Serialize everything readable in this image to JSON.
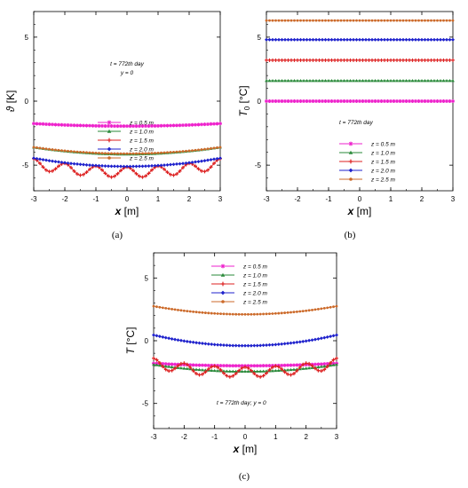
{
  "panels": [
    {
      "caption": "(a)",
      "ylabel_main": "ϑ",
      "ylabel_unit": " [K]",
      "xlabel_main": "x",
      "xlabel_unit": " [m]",
      "annotation": [
        "t = 772th day",
        "y = 0"
      ],
      "xlim": [
        -3,
        3
      ],
      "ylim": [
        -7,
        7
      ],
      "xticks": [
        -3,
        -2,
        -1,
        0,
        1,
        2,
        3
      ],
      "yticks": [
        -5,
        0,
        5
      ],
      "legend_position": "top-center",
      "series": [
        {
          "label": "z = 0.5 m",
          "color": "#ee22cc",
          "marker": "star",
          "kind": "bowl",
          "center": -1.95,
          "edge": -1.75
        },
        {
          "label": "z = 1.0 m",
          "color": "#2a8a3a",
          "marker": "triangle",
          "kind": "bowl",
          "center": -4.15,
          "edge": -3.6
        },
        {
          "label": "z = 1.5 m",
          "color": "#dd2222",
          "marker": "plus",
          "kind": "wave",
          "center": -5.55,
          "edge": -4.9,
          "amp": 0.4
        },
        {
          "label": "z = 2.0 m",
          "color": "#1f22cc",
          "marker": "diamond",
          "kind": "bowl",
          "center": -5.1,
          "edge": -4.45
        },
        {
          "label": "z = 2.5 m",
          "color": "#cc6a2a",
          "marker": "circle",
          "kind": "bowl",
          "center": -4.1,
          "edge": -3.6
        }
      ]
    },
    {
      "caption": "(b)",
      "ylabel_main": "T",
      "ylabel_sub": "0",
      "ylabel_unit": " [°C]",
      "xlabel_main": "x",
      "xlabel_unit": " [m]",
      "annotation": [
        "t = 772th day"
      ],
      "xlim": [
        -3,
        3
      ],
      "ylim": [
        -7,
        7
      ],
      "xticks": [
        -3,
        -2,
        -1,
        0,
        1,
        2,
        3
      ],
      "yticks": [
        -5,
        0,
        5
      ],
      "legend_position": "bottom-center",
      "series": [
        {
          "label": "z = 0.5 m",
          "color": "#ee22cc",
          "marker": "star",
          "kind": "flat",
          "center": 0.0,
          "edge": 0.0
        },
        {
          "label": "z = 1.0 m",
          "color": "#2a8a3a",
          "marker": "triangle",
          "kind": "flat",
          "center": 1.6,
          "edge": 1.6
        },
        {
          "label": "z = 1.5 m",
          "color": "#dd2222",
          "marker": "plus",
          "kind": "flat",
          "center": 3.2,
          "edge": 3.2
        },
        {
          "label": "z = 2.0 m",
          "color": "#1f22cc",
          "marker": "diamond",
          "kind": "flat",
          "center": 4.8,
          "edge": 4.8
        },
        {
          "label": "z = 2.5 m",
          "color": "#cc6a2a",
          "marker": "circle",
          "kind": "flat",
          "center": 6.3,
          "edge": 6.3
        }
      ]
    },
    {
      "caption": "(c)",
      "ylabel_main": "T",
      "ylabel_unit": " [°C]",
      "xlabel_main": "x",
      "xlabel_unit": " [m]",
      "annotation": [
        "t = 772th day;  y = 0"
      ],
      "xlim": [
        -3,
        3
      ],
      "ylim": [
        -7,
        7
      ],
      "xticks": [
        -3,
        -2,
        -1,
        0,
        1,
        2,
        3
      ],
      "yticks": [
        -5,
        0,
        5
      ],
      "legend_position": "top-center",
      "series": [
        {
          "label": "z = 0.5 m",
          "color": "#ee22cc",
          "marker": "star",
          "kind": "bowl",
          "center": -2.0,
          "edge": -1.8
        },
        {
          "label": "z = 1.0 m",
          "color": "#2a8a3a",
          "marker": "triangle",
          "kind": "bowl",
          "center": -2.45,
          "edge": -1.9
        },
        {
          "label": "z = 1.5 m",
          "color": "#dd2222",
          "marker": "plus",
          "kind": "wave",
          "center": -2.5,
          "edge": -1.8,
          "amp": 0.4
        },
        {
          "label": "z = 2.0 m",
          "color": "#1f22cc",
          "marker": "diamond",
          "kind": "bowl",
          "center": -0.4,
          "edge": 0.45
        },
        {
          "label": "z = 2.5 m",
          "color": "#cc6a2a",
          "marker": "circle",
          "kind": "bowl",
          "center": 2.1,
          "edge": 2.75
        }
      ]
    }
  ],
  "chart_data": [
    {
      "type": "line",
      "ylabel": "ϑ [K]",
      "xlabel": "x [m]",
      "xlim": [
        -3,
        3
      ],
      "ylim": [
        -7,
        7
      ],
      "legend": "top-center",
      "series": [
        {
          "name": "z = 0.5 m",
          "x": [
            -3,
            0,
            3
          ],
          "values": [
            -1.75,
            -1.95,
            -1.75
          ]
        },
        {
          "name": "z = 1.0 m",
          "x": [
            -3,
            0,
            3
          ],
          "values": [
            -3.6,
            -4.15,
            -3.6
          ]
        },
        {
          "name": "z = 1.5 m",
          "x": [
            -3,
            0,
            3
          ],
          "values": [
            -4.9,
            -5.55,
            -4.9
          ]
        },
        {
          "name": "z = 2.0 m",
          "x": [
            -3,
            0,
            3
          ],
          "values": [
            -4.45,
            -5.1,
            -4.45
          ]
        },
        {
          "name": "z = 2.5 m",
          "x": [
            -3,
            0,
            3
          ],
          "values": [
            -3.6,
            -4.1,
            -3.6
          ]
        }
      ]
    },
    {
      "type": "line",
      "ylabel": "T0 [°C]",
      "xlabel": "x [m]",
      "xlim": [
        -3,
        3
      ],
      "ylim": [
        -7,
        7
      ],
      "legend": "bottom-center",
      "series": [
        {
          "name": "z = 0.5 m",
          "x": [
            -3,
            0,
            3
          ],
          "values": [
            0.0,
            0.0,
            0.0
          ]
        },
        {
          "name": "z = 1.0 m",
          "x": [
            -3,
            0,
            3
          ],
          "values": [
            1.6,
            1.6,
            1.6
          ]
        },
        {
          "name": "z = 1.5 m",
          "x": [
            -3,
            0,
            3
          ],
          "values": [
            3.2,
            3.2,
            3.2
          ]
        },
        {
          "name": "z = 2.0 m",
          "x": [
            -3,
            0,
            3
          ],
          "values": [
            4.8,
            4.8,
            4.8
          ]
        },
        {
          "name": "z = 2.5 m",
          "x": [
            -3,
            0,
            3
          ],
          "values": [
            6.3,
            6.3,
            6.3
          ]
        }
      ]
    },
    {
      "type": "line",
      "ylabel": "T [°C]",
      "xlabel": "x [m]",
      "xlim": [
        -3,
        3
      ],
      "ylim": [
        -7,
        7
      ],
      "legend": "top-center",
      "series": [
        {
          "name": "z = 0.5 m",
          "x": [
            -3,
            0,
            3
          ],
          "values": [
            -1.8,
            -2.0,
            -1.8
          ]
        },
        {
          "name": "z = 1.0 m",
          "x": [
            -3,
            0,
            3
          ],
          "values": [
            -1.9,
            -2.45,
            -1.9
          ]
        },
        {
          "name": "z = 1.5 m",
          "x": [
            -3,
            0,
            3
          ],
          "values": [
            -1.8,
            -2.5,
            -1.8
          ]
        },
        {
          "name": "z = 2.0 m",
          "x": [
            -3,
            0,
            3
          ],
          "values": [
            0.45,
            -0.4,
            0.45
          ]
        },
        {
          "name": "z = 2.5 m",
          "x": [
            -3,
            0,
            3
          ],
          "values": [
            2.75,
            2.1,
            2.75
          ]
        }
      ]
    }
  ]
}
